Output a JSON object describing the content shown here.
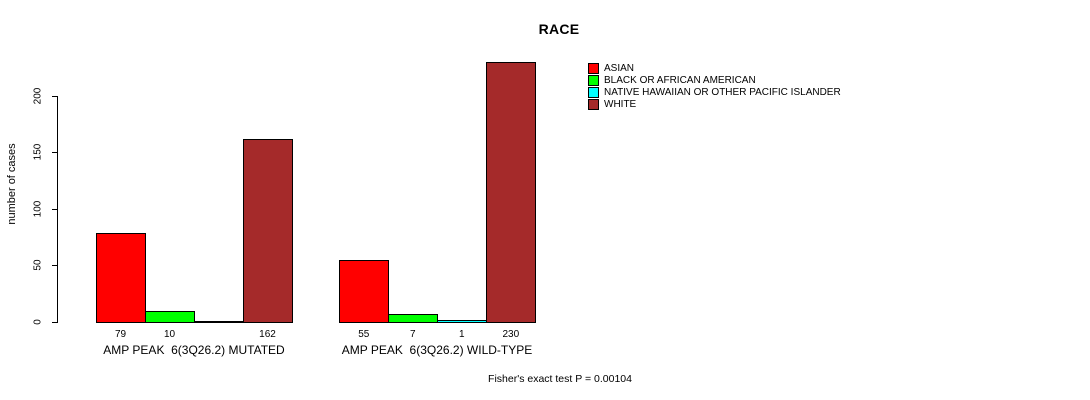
{
  "title": "RACE",
  "chart_data": {
    "type": "bar",
    "title": "RACE",
    "xlabel": "",
    "ylabel": "number of cases",
    "yticks": [
      0,
      50,
      100,
      150,
      200
    ],
    "ylim": [
      0,
      230
    ],
    "grid": false,
    "legend_position": "top-right",
    "categories": [
      "AMP PEAK  6(3Q26.2) MUTATED",
      "AMP PEAK  6(3Q26.2) WILD-TYPE"
    ],
    "series": [
      {
        "name": "ASIAN",
        "color": "#FF0000",
        "values": [
          79,
          55
        ]
      },
      {
        "name": "BLACK OR AFRICAN AMERICAN",
        "color": "#00FF00",
        "values": [
          10,
          7
        ]
      },
      {
        "name": "NATIVE HAWAIIAN OR OTHER PACIFIC ISLANDER",
        "color": "#00FFFF",
        "values": [
          0,
          1
        ]
      },
      {
        "name": "WHITE",
        "color": "#A52A2A",
        "values": [
          162,
          230
        ]
      }
    ],
    "bar_value_labels": [
      [
        "79",
        "10",
        "",
        "162"
      ],
      [
        "55",
        "7",
        "1",
        "230"
      ]
    ],
    "annotation": "Fisher's exact test P = 0.00104"
  }
}
